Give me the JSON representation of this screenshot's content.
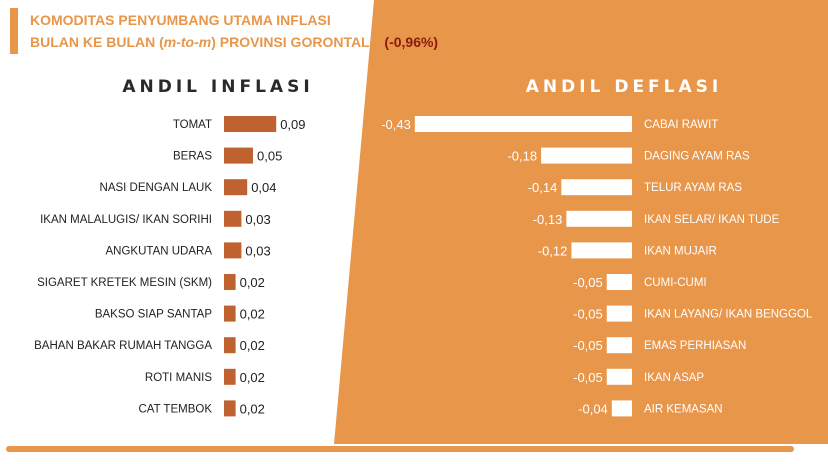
{
  "header": {
    "line1": "KOMODITAS PENYUMBANG UTAMA INFLASI",
    "line2_prefix": "BULAN KE BULAN (",
    "line2_italic": "m-to-m",
    "line2_suffix": ") PROVINSI GORONTALO ",
    "line2_value": "(-0,96%)"
  },
  "colors": {
    "orange": "#E8964A",
    "bar_inflation": "#C0622F",
    "title_orange": "#E8964A",
    "value_red": "#8B1A10",
    "bar_deflation": "#FFFFFF",
    "text_dark": "#222222",
    "text_light": "#FFFFFF"
  },
  "chart_data": [
    {
      "type": "bar",
      "title": "ANDIL INFLASI",
      "categories": [
        "TOMAT",
        "BERAS",
        "NASI DENGAN LAUK",
        "IKAN MALALUGIS/ IKAN SORIHI",
        "ANGKUTAN UDARA",
        "SIGARET KRETEK MESIN (SKM)",
        "BAKSO SIAP SANTAP",
        "BAHAN BAKAR RUMAH TANGGA",
        "ROTI MANIS",
        "CAT TEMBOK"
      ],
      "values": [
        0.09,
        0.05,
        0.04,
        0.03,
        0.03,
        0.02,
        0.02,
        0.02,
        0.02,
        0.02
      ],
      "labels": [
        "0,09",
        "0,05",
        "0,04",
        "0,03",
        "0,03",
        "0,02",
        "0,02",
        "0,02",
        "0,02",
        "0,02"
      ]
    },
    {
      "type": "bar",
      "title": "ANDIL DEFLASI",
      "categories": [
        "CABAI RAWIT",
        "DAGING AYAM RAS",
        "TELUR AYAM RAS",
        "IKAN SELAR/ IKAN TUDE",
        "IKAN MUJAIR",
        "CUMI-CUMI",
        "IKAN LAYANG/ IKAN BENGGOL",
        "EMAS PERHIASAN",
        "IKAN ASAP",
        "AIR KEMASAN"
      ],
      "values": [
        -0.43,
        -0.18,
        -0.14,
        -0.13,
        -0.12,
        -0.05,
        -0.05,
        -0.05,
        -0.05,
        -0.04
      ],
      "labels": [
        "-0,43",
        "-0,18",
        "-0,14",
        "-0,13",
        "-0,12",
        "-0,05",
        "-0,05",
        "-0,05",
        "-0,05",
        "-0,04"
      ]
    }
  ]
}
